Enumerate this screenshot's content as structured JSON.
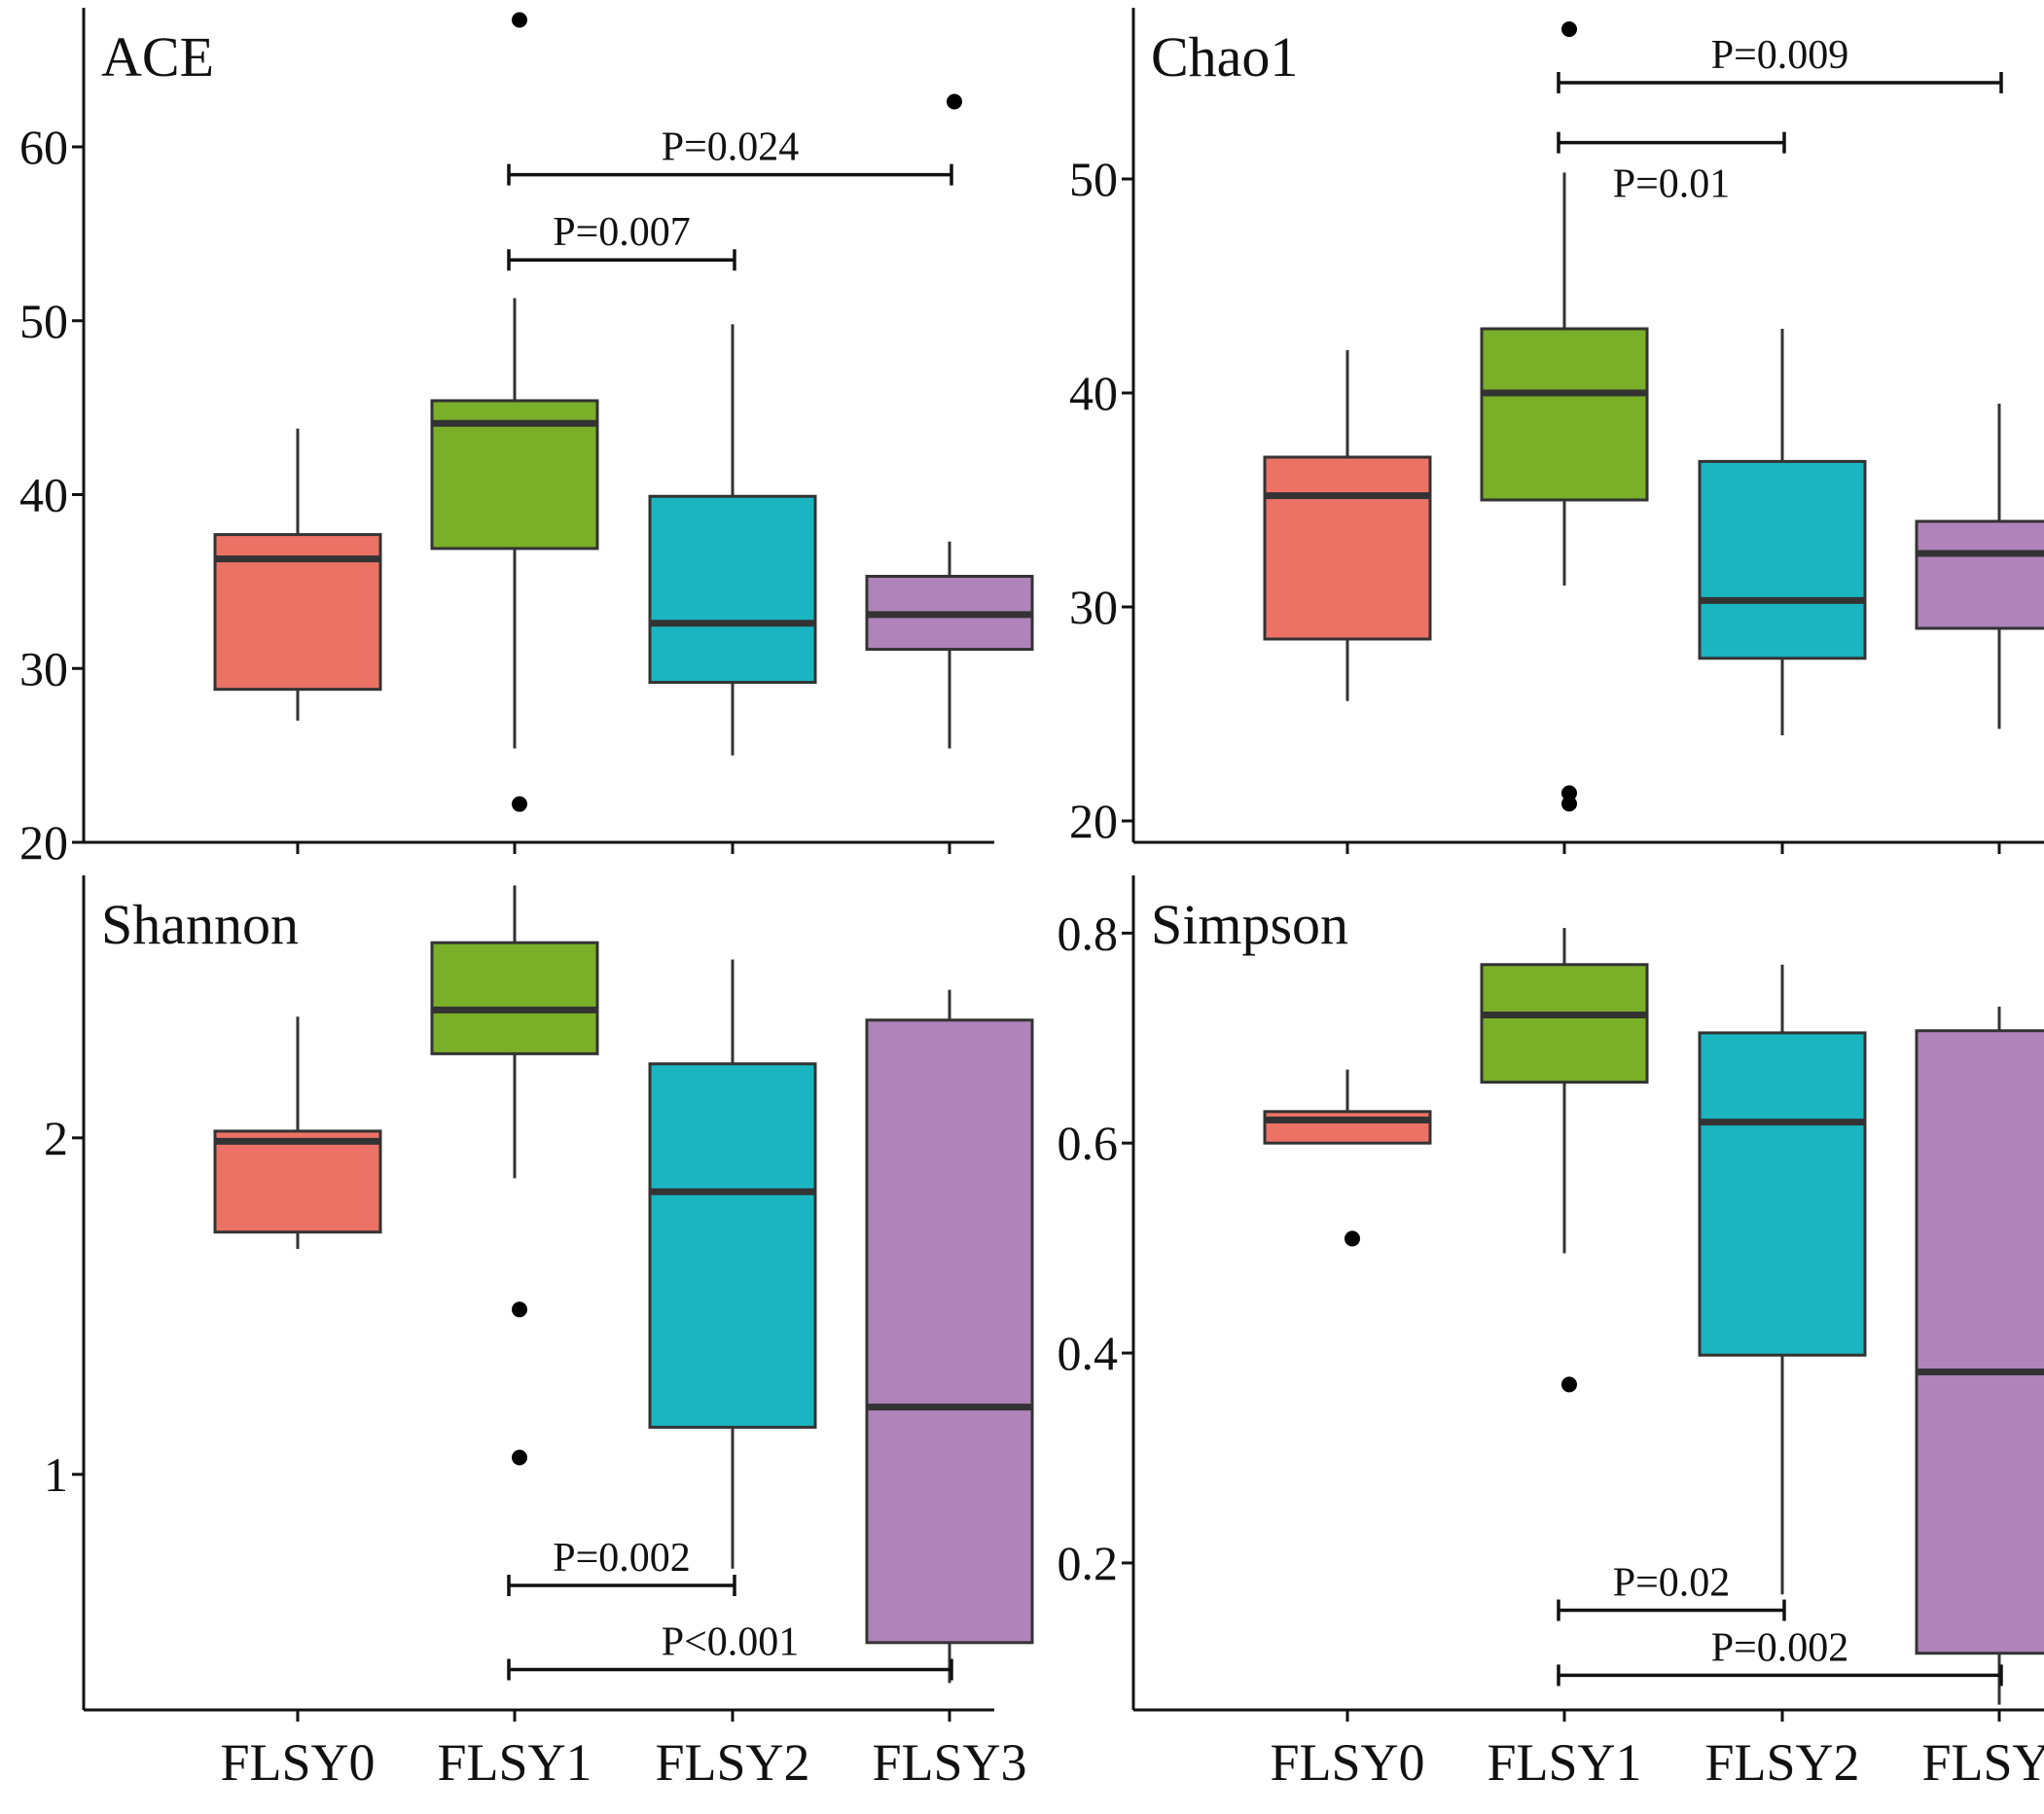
{
  "categories": [
    "FLSY0",
    "FLSY1",
    "FLSY2",
    "FLSY3"
  ],
  "colors": {
    "FLSY0": "#ED7266",
    "FLSY1": "#7AAF28",
    "FLSY2": "#1BB5C1",
    "FLSY3": "#B083BA",
    "line": "#333333"
  },
  "chart_data": [
    {
      "type": "boxplot",
      "title": "ACE",
      "ylim": [
        20,
        68
      ],
      "yticks": [
        20,
        30,
        40,
        50,
        60
      ],
      "show_x_labels": false,
      "series": [
        {
          "category": "FLSY0",
          "whisker_low": 27.0,
          "q1": 28.8,
          "median": 36.3,
          "q3": 37.7,
          "whisker_high": 43.8,
          "outliers": []
        },
        {
          "category": "FLSY1",
          "whisker_low": 25.4,
          "q1": 36.9,
          "median": 44.1,
          "q3": 45.4,
          "whisker_high": 51.3,
          "outliers": [
            22.2,
            67.3
          ]
        },
        {
          "category": "FLSY2",
          "whisker_low": 25.0,
          "q1": 29.2,
          "median": 32.6,
          "q3": 39.9,
          "whisker_high": 49.8,
          "outliers": []
        },
        {
          "category": "FLSY3",
          "whisker_low": 25.4,
          "q1": 31.1,
          "median": 33.1,
          "q3": 35.3,
          "whisker_high": 37.3,
          "outliers": [
            62.6
          ]
        }
      ],
      "comparisons": [
        {
          "from": "FLSY1",
          "to": "FLSY2",
          "y": 53.5,
          "label": "P=0.007",
          "label_pos": "above"
        },
        {
          "from": "FLSY1",
          "to": "FLSY3",
          "y": 58.4,
          "label": "P=0.024",
          "label_pos": "above"
        }
      ]
    },
    {
      "type": "boxplot",
      "title": "Chao1",
      "ylim": [
        19,
        58
      ],
      "yticks": [
        20,
        30,
        40,
        50
      ],
      "show_x_labels": false,
      "series": [
        {
          "category": "FLSY0",
          "whisker_low": 25.6,
          "q1": 28.5,
          "median": 35.2,
          "q3": 37.0,
          "whisker_high": 42.0,
          "outliers": []
        },
        {
          "category": "FLSY1",
          "whisker_low": 31.0,
          "q1": 35.0,
          "median": 40.0,
          "q3": 43.0,
          "whisker_high": 50.3,
          "outliers": [
            20.8,
            21.3,
            57.0
          ]
        },
        {
          "category": "FLSY2",
          "whisker_low": 24.0,
          "q1": 27.6,
          "median": 30.3,
          "q3": 36.8,
          "whisker_high": 43.0,
          "outliers": []
        },
        {
          "category": "FLSY3",
          "whisker_low": 24.3,
          "q1": 29.0,
          "median": 32.5,
          "q3": 34.0,
          "whisker_high": 39.5,
          "outliers": []
        }
      ],
      "comparisons": [
        {
          "from": "FLSY1",
          "to": "FLSY2",
          "y": 51.7,
          "label": "P=0.01",
          "label_pos": "below"
        },
        {
          "from": "FLSY1",
          "to": "FLSY3",
          "y": 54.5,
          "label": "P=0.009",
          "label_pos": "above"
        }
      ]
    },
    {
      "type": "boxplot",
      "title": "Shannon",
      "ylim": [
        0.3,
        2.78
      ],
      "yticks": [
        1,
        2
      ],
      "show_x_labels": true,
      "series": [
        {
          "category": "FLSY0",
          "whisker_low": 1.67,
          "q1": 1.72,
          "median": 1.99,
          "q3": 2.02,
          "whisker_high": 2.36,
          "outliers": []
        },
        {
          "category": "FLSY1",
          "whisker_low": 1.88,
          "q1": 2.25,
          "median": 2.38,
          "q3": 2.58,
          "whisker_high": 2.75,
          "outliers": [
            1.05,
            1.49
          ]
        },
        {
          "category": "FLSY2",
          "whisker_low": 0.72,
          "q1": 1.14,
          "median": 1.84,
          "q3": 2.22,
          "whisker_high": 2.53,
          "outliers": []
        },
        {
          "category": "FLSY3",
          "whisker_low": 0.38,
          "q1": 0.5,
          "median": 1.2,
          "q3": 2.35,
          "whisker_high": 2.44,
          "outliers": []
        }
      ],
      "comparisons": [
        {
          "from": "FLSY1",
          "to": "FLSY2",
          "y": 0.67,
          "label": "P=0.002",
          "label_pos": "above"
        },
        {
          "from": "FLSY1",
          "to": "FLSY3",
          "y": 0.42,
          "label": "P<0.001",
          "label_pos": "above"
        }
      ]
    },
    {
      "type": "boxplot",
      "title": "Simpson",
      "ylim": [
        0.06,
        0.855
      ],
      "yticks": [
        0.2,
        0.4,
        0.6,
        0.8
      ],
      "show_x_labels": true,
      "series": [
        {
          "category": "FLSY0",
          "whisker_low": 0.6,
          "q1": 0.6,
          "median": 0.622,
          "q3": 0.63,
          "whisker_high": 0.67,
          "outliers": [
            0.509
          ]
        },
        {
          "category": "FLSY1",
          "whisker_low": 0.495,
          "q1": 0.658,
          "median": 0.722,
          "q3": 0.77,
          "whisker_high": 0.805,
          "outliers": [
            0.37
          ]
        },
        {
          "category": "FLSY2",
          "whisker_low": 0.17,
          "q1": 0.398,
          "median": 0.62,
          "q3": 0.705,
          "whisker_high": 0.77,
          "outliers": []
        },
        {
          "category": "FLSY3",
          "whisker_low": 0.065,
          "q1": 0.114,
          "median": 0.382,
          "q3": 0.707,
          "whisker_high": 0.73,
          "outliers": []
        }
      ],
      "comparisons": [
        {
          "from": "FLSY1",
          "to": "FLSY2",
          "y": 0.155,
          "label": "P=0.02",
          "label_pos": "above"
        },
        {
          "from": "FLSY1",
          "to": "FLSY3",
          "y": 0.093,
          "label": "P=0.002",
          "label_pos": "above"
        }
      ]
    }
  ]
}
